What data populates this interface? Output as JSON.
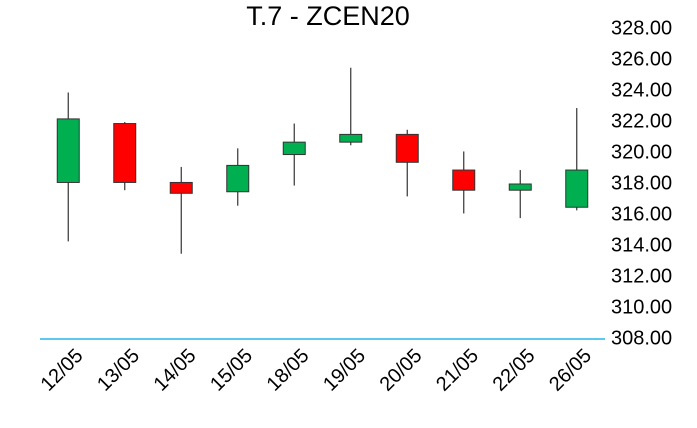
{
  "chart_data": {
    "type": "candlestick",
    "title": "T.7 - ZCEN20",
    "categories": [
      "12/05",
      "13/05",
      "14/05",
      "15/05",
      "18/05",
      "19/05",
      "20/05",
      "21/05",
      "22/05",
      "26/05"
    ],
    "open": [
      318.1,
      321.9,
      318.1,
      317.5,
      319.9,
      320.7,
      321.2,
      318.9,
      317.6,
      316.5
    ],
    "high": [
      323.9,
      322.0,
      319.1,
      320.3,
      321.9,
      325.5,
      321.5,
      320.1,
      318.9,
      322.9
    ],
    "low": [
      314.3,
      317.6,
      313.5,
      316.6,
      317.9,
      320.5,
      317.2,
      316.1,
      315.8,
      316.3
    ],
    "close": [
      322.2,
      318.1,
      317.4,
      319.2,
      320.7,
      321.2,
      319.4,
      317.6,
      318.0,
      318.9
    ],
    "up_color": "#00b050",
    "down_color": "#ff0000",
    "axis_color": "#29b6e8",
    "ylim": [
      308,
      328
    ],
    "yticks": [
      {
        "value": 308,
        "label": "308.00"
      },
      {
        "value": 310,
        "label": "310.00"
      },
      {
        "value": 312,
        "label": "312.00"
      },
      {
        "value": 314,
        "label": "314.00"
      },
      {
        "value": 316,
        "label": "316.00"
      },
      {
        "value": 318,
        "label": "318.00"
      },
      {
        "value": 320,
        "label": "320.00"
      },
      {
        "value": 322,
        "label": "322.00"
      },
      {
        "value": 324,
        "label": "324.00"
      },
      {
        "value": 326,
        "label": "326.00"
      },
      {
        "value": 328,
        "label": "328.00"
      }
    ]
  }
}
